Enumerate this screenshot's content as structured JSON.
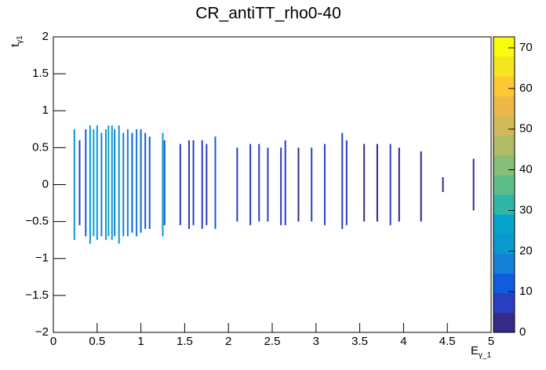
{
  "chart_data": {
    "type": "heatmap",
    "title": "CR_antiTT_rho0-40",
    "xlabel": {
      "main": "E",
      "sub": "γ_1"
    },
    "ylabel": {
      "main": "t",
      "sub": "γ1"
    },
    "xlim": [
      0,
      5
    ],
    "xticks": [
      0,
      0.5,
      1,
      1.5,
      2,
      2.5,
      3,
      3.5,
      4,
      4.5,
      5
    ],
    "ylim": [
      -2,
      2
    ],
    "yticks": [
      {
        "value": -2,
        "label": "−2"
      },
      {
        "value": -1.5,
        "label": "−1.5"
      },
      {
        "value": -1,
        "label": "−1"
      },
      {
        "value": -0.5,
        "label": "−0.5"
      },
      0,
      0.5,
      1,
      1.5,
      2
    ],
    "zlim": [
      0,
      72.7
    ],
    "zticks": [
      0,
      10,
      20,
      30,
      40,
      50,
      60,
      70
    ],
    "palette": [
      "#352a87",
      "#2a3ec0",
      "#0f5cdd",
      "#1481d6",
      "#0a98d0",
      "#06a4ca",
      "#2eb7a4",
      "#5fbd8b",
      "#87bf77",
      "#b1bd66",
      "#d1bb59",
      "#ecb946",
      "#fec832",
      "#f5e41f",
      "#f9fb0e"
    ],
    "stripes": {
      "x": [
        0.24,
        0.3,
        0.37,
        0.42,
        0.46,
        0.5,
        0.55,
        0.6,
        0.63,
        0.67,
        0.7,
        0.75,
        0.8,
        0.85,
        0.9,
        0.95,
        1.0,
        1.05,
        1.1,
        1.25,
        1.27,
        1.45,
        1.55,
        1.6,
        1.7,
        1.75,
        1.85,
        2.1,
        2.25,
        2.35,
        2.45,
        2.6,
        2.65,
        2.8,
        2.95,
        3.1,
        3.3,
        3.35,
        3.55,
        3.7,
        3.85,
        3.95,
        4.2,
        4.45,
        4.8
      ],
      "ymin": [
        -0.75,
        -0.55,
        -0.7,
        -0.8,
        -0.7,
        -0.75,
        -0.7,
        -0.75,
        -0.7,
        -0.75,
        -0.7,
        -0.8,
        -0.7,
        -0.7,
        -0.65,
        -0.7,
        -0.65,
        -0.6,
        -0.6,
        -0.7,
        -0.55,
        -0.55,
        -0.6,
        -0.55,
        -0.6,
        -0.55,
        -0.6,
        -0.5,
        -0.55,
        -0.5,
        -0.5,
        -0.55,
        -0.55,
        -0.5,
        -0.5,
        -0.55,
        -0.6,
        -0.55,
        -0.5,
        -0.5,
        -0.55,
        -0.5,
        -0.5,
        -0.1,
        -0.35
      ],
      "ymax": [
        0.75,
        0.6,
        0.75,
        0.8,
        0.75,
        0.8,
        0.7,
        0.75,
        0.8,
        0.8,
        0.75,
        0.8,
        0.7,
        0.75,
        0.7,
        0.75,
        0.75,
        0.7,
        0.65,
        0.7,
        0.6,
        0.55,
        0.6,
        0.6,
        0.6,
        0.55,
        0.65,
        0.5,
        0.55,
        0.55,
        0.5,
        0.5,
        0.6,
        0.5,
        0.5,
        0.55,
        0.7,
        0.6,
        0.55,
        0.55,
        0.55,
        0.5,
        0.45,
        0.1,
        0.35
      ],
      "values": [
        20,
        8,
        12,
        20,
        25,
        22,
        18,
        20,
        25,
        22,
        18,
        22,
        15,
        15,
        14,
        16,
        14,
        12,
        10,
        20,
        10,
        6,
        8,
        6,
        8,
        6,
        10,
        5,
        6,
        5,
        5,
        5,
        6,
        4,
        5,
        5,
        6,
        5,
        4,
        4,
        5,
        4,
        4,
        3,
        3
      ]
    }
  }
}
